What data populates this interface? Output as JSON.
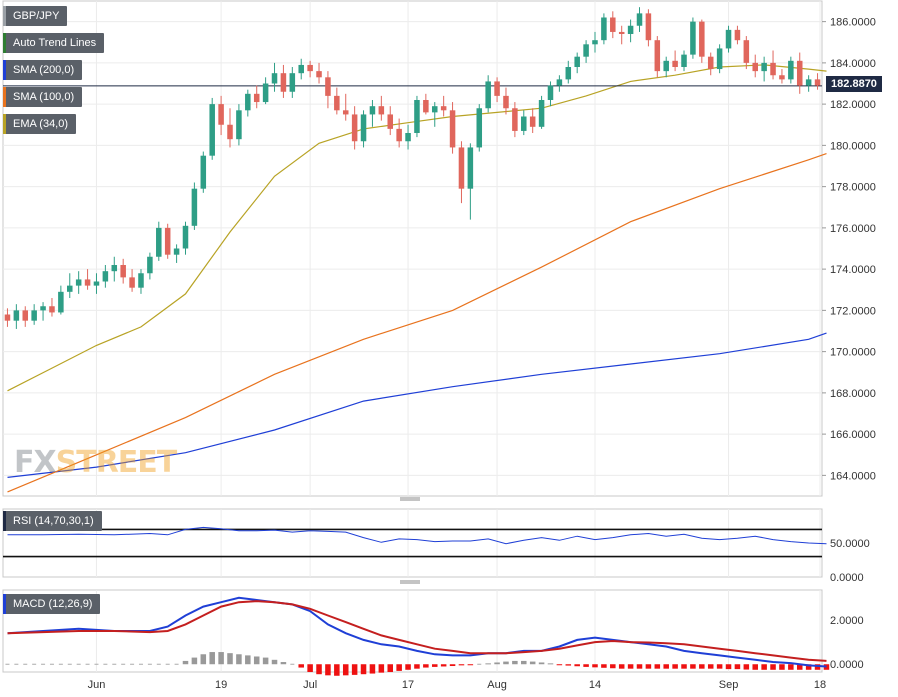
{
  "brand": {
    "fx": "FX",
    "street": "STREET"
  },
  "legend": [
    {
      "label": "GBP/JPY",
      "color": "#9aa0a6"
    },
    {
      "label": "Auto Trend Lines",
      "color": "#2e7d32"
    },
    {
      "label": "SMA (200,0)",
      "color": "#1f3fd6"
    },
    {
      "label": "SMA (100,0)",
      "color": "#e8731e"
    },
    {
      "label": "EMA (34,0)",
      "color": "#b8a325"
    }
  ],
  "rsi_label": "RSI (14,70,30,1)",
  "macd_label": "MACD (12,26,9)",
  "last_price": "182.8870",
  "chart_data": [
    {
      "type": "candlestick",
      "title": "GBP/JPY",
      "ylim": [
        163,
        187
      ],
      "yticks": [
        "164.0000",
        "166.0000",
        "168.0000",
        "170.0000",
        "172.0000",
        "174.0000",
        "176.0000",
        "178.0000",
        "180.0000",
        "182.0000",
        "184.0000",
        "186.0000"
      ],
      "xticks": [
        "Jun",
        "19",
        "Jul",
        "17",
        "Aug",
        "14",
        "Sep",
        "18"
      ],
      "candles": [
        [
          171.8,
          172.1,
          171.2,
          171.5
        ],
        [
          171.5,
          172.3,
          171.1,
          172.0
        ],
        [
          172.0,
          172.2,
          171.2,
          171.5
        ],
        [
          171.5,
          172.3,
          171.3,
          172.0
        ],
        [
          172.0,
          172.4,
          171.5,
          172.2
        ],
        [
          172.2,
          172.6,
          171.7,
          171.9
        ],
        [
          171.9,
          173.2,
          171.8,
          172.9
        ],
        [
          172.9,
          173.8,
          172.6,
          173.2
        ],
        [
          173.2,
          173.9,
          172.8,
          173.5
        ],
        [
          173.5,
          174.0,
          173.0,
          173.2
        ],
        [
          173.2,
          173.8,
          172.8,
          173.4
        ],
        [
          173.4,
          174.2,
          173.1,
          173.9
        ],
        [
          173.9,
          174.6,
          173.4,
          174.2
        ],
        [
          174.2,
          174.5,
          173.3,
          173.6
        ],
        [
          173.6,
          174.0,
          172.9,
          173.1
        ],
        [
          173.1,
          174.0,
          172.8,
          173.8
        ],
        [
          173.8,
          174.8,
          173.5,
          174.6
        ],
        [
          174.6,
          176.3,
          174.4,
          176.0
        ],
        [
          176.0,
          176.2,
          174.5,
          174.7
        ],
        [
          174.7,
          175.2,
          174.3,
          175.0
        ],
        [
          175.0,
          176.3,
          174.7,
          176.1
        ],
        [
          176.1,
          178.2,
          175.9,
          177.9
        ],
        [
          177.9,
          179.7,
          177.7,
          179.5
        ],
        [
          179.5,
          182.3,
          179.3,
          182.0
        ],
        [
          182.0,
          182.4,
          180.5,
          181.0
        ],
        [
          181.0,
          181.8,
          179.9,
          180.3
        ],
        [
          180.3,
          182.0,
          180.0,
          181.7
        ],
        [
          181.7,
          182.7,
          181.4,
          182.5
        ],
        [
          182.5,
          182.9,
          181.8,
          182.1
        ],
        [
          182.1,
          183.3,
          182.0,
          183.0
        ],
        [
          183.0,
          184.0,
          182.6,
          183.5
        ],
        [
          183.5,
          183.9,
          182.3,
          182.6
        ],
        [
          182.6,
          183.8,
          182.3,
          183.5
        ],
        [
          183.5,
          184.2,
          183.2,
          183.9
        ],
        [
          183.9,
          184.1,
          183.3,
          183.6
        ],
        [
          183.6,
          184.0,
          183.0,
          183.3
        ],
        [
          183.3,
          183.6,
          181.8,
          182.4
        ],
        [
          182.4,
          182.8,
          181.5,
          181.7
        ],
        [
          181.7,
          182.5,
          181.2,
          181.5
        ],
        [
          181.5,
          181.9,
          179.8,
          180.2
        ],
        [
          180.2,
          181.7,
          179.9,
          181.5
        ],
        [
          181.5,
          182.2,
          180.9,
          181.9
        ],
        [
          181.9,
          182.4,
          181.2,
          181.5
        ],
        [
          181.5,
          181.9,
          180.5,
          180.8
        ],
        [
          180.8,
          181.3,
          179.9,
          180.2
        ],
        [
          180.2,
          181.0,
          179.8,
          180.6
        ],
        [
          180.6,
          182.4,
          180.4,
          182.2
        ],
        [
          182.2,
          182.5,
          181.5,
          181.6
        ],
        [
          181.6,
          182.1,
          180.9,
          181.9
        ],
        [
          181.9,
          182.4,
          181.4,
          181.7
        ],
        [
          181.7,
          182.1,
          179.6,
          179.9
        ],
        [
          179.9,
          180.2,
          177.2,
          177.9
        ],
        [
          177.9,
          180.1,
          176.4,
          179.9
        ],
        [
          179.9,
          182.0,
          179.7,
          181.8
        ],
        [
          181.8,
          183.4,
          181.6,
          183.1
        ],
        [
          183.1,
          183.3,
          182.1,
          182.4
        ],
        [
          182.4,
          182.8,
          181.5,
          181.8
        ],
        [
          181.8,
          182.1,
          180.4,
          180.7
        ],
        [
          180.7,
          181.7,
          180.5,
          181.4
        ],
        [
          181.4,
          181.8,
          180.6,
          180.9
        ],
        [
          180.9,
          182.4,
          180.8,
          182.2
        ],
        [
          182.2,
          183.1,
          181.9,
          182.9
        ],
        [
          182.9,
          183.4,
          182.6,
          183.2
        ],
        [
          183.2,
          184.1,
          183.0,
          183.8
        ],
        [
          183.8,
          184.5,
          183.5,
          184.3
        ],
        [
          184.3,
          185.1,
          184.0,
          184.9
        ],
        [
          184.9,
          185.5,
          184.5,
          185.1
        ],
        [
          185.1,
          186.4,
          184.9,
          186.2
        ],
        [
          186.2,
          186.5,
          185.2,
          185.5
        ],
        [
          185.5,
          185.8,
          184.9,
          185.4
        ],
        [
          185.4,
          186.1,
          185.0,
          185.8
        ],
        [
          185.8,
          186.7,
          185.5,
          186.4
        ],
        [
          186.4,
          186.6,
          184.8,
          185.1
        ],
        [
          185.1,
          185.3,
          183.3,
          183.6
        ],
        [
          183.6,
          184.3,
          183.3,
          184.1
        ],
        [
          184.1,
          184.6,
          183.6,
          183.8
        ],
        [
          183.8,
          184.6,
          183.6,
          184.4
        ],
        [
          184.4,
          186.2,
          184.2,
          186.0
        ],
        [
          186.0,
          186.1,
          184.0,
          184.3
        ],
        [
          184.3,
          184.5,
          183.4,
          183.7
        ],
        [
          183.7,
          184.9,
          183.5,
          184.7
        ],
        [
          184.7,
          185.8,
          184.5,
          185.6
        ],
        [
          185.6,
          185.8,
          184.9,
          185.1
        ],
        [
          185.1,
          185.3,
          183.7,
          184.0
        ],
        [
          184.0,
          184.4,
          183.3,
          183.6
        ],
        [
          183.6,
          184.3,
          183.1,
          184.0
        ],
        [
          184.0,
          184.6,
          183.2,
          183.4
        ],
        [
          183.4,
          183.7,
          183.0,
          183.2
        ],
        [
          183.2,
          184.3,
          183.0,
          184.1
        ],
        [
          184.1,
          184.5,
          182.5,
          182.9
        ],
        [
          182.9,
          183.4,
          182.6,
          183.2
        ],
        [
          183.2,
          183.5,
          182.7,
          182.9
        ]
      ],
      "series": [
        {
          "name": "SMA (200,0)",
          "x": [
            0,
            10,
            20,
            30,
            40,
            50,
            60,
            70,
            80,
            90,
            92
          ],
          "values": [
            163.9,
            164.4,
            165.1,
            166.2,
            167.6,
            168.3,
            168.9,
            169.4,
            169.9,
            170.6,
            170.9
          ]
        },
        {
          "name": "SMA (100,0)",
          "x": [
            0,
            10,
            20,
            30,
            40,
            50,
            60,
            70,
            80,
            90,
            92
          ],
          "values": [
            163.2,
            165.0,
            166.8,
            168.9,
            170.6,
            172.0,
            174.1,
            176.3,
            177.9,
            179.3,
            179.6
          ]
        },
        {
          "name": "EMA (34,0)",
          "x": [
            0,
            5,
            10,
            15,
            20,
            25,
            30,
            35,
            40,
            45,
            50,
            55,
            60,
            65,
            70,
            75,
            80,
            85,
            90,
            92
          ],
          "values": [
            168.1,
            169.2,
            170.3,
            171.2,
            172.8,
            175.8,
            178.5,
            180.1,
            180.8,
            181.1,
            181.4,
            181.6,
            181.8,
            182.4,
            183.1,
            183.4,
            183.8,
            183.9,
            183.7,
            183.6
          ]
        }
      ],
      "trend_line": {
        "value": 182.887
      }
    },
    {
      "type": "line",
      "title": "RSI (14,70,30,1)",
      "ylim": [
        0,
        100
      ],
      "yticks": [
        "0.0000",
        "50.0000"
      ],
      "levels": [
        70,
        30
      ],
      "x": [
        0,
        4,
        8,
        12,
        16,
        18,
        20,
        22,
        24,
        26,
        28,
        30,
        32,
        34,
        36,
        38,
        40,
        42,
        44,
        46,
        48,
        50,
        52,
        54,
        56,
        58,
        60,
        62,
        64,
        66,
        68,
        70,
        72,
        74,
        76,
        78,
        80,
        82,
        84,
        86,
        88,
        90,
        92
      ],
      "values": [
        62,
        62,
        63,
        62,
        64,
        62,
        70,
        73,
        71,
        68,
        68,
        69,
        66,
        68,
        67,
        66,
        58,
        51,
        56,
        55,
        52,
        53,
        53,
        56,
        49,
        54,
        58,
        54,
        60,
        55,
        58,
        62,
        64,
        60,
        63,
        57,
        55,
        57,
        60,
        55,
        52,
        50,
        49
      ]
    },
    {
      "type": "line",
      "title": "MACD (12,26,9)",
      "ylim": [
        -0.35,
        3.35
      ],
      "yticks": [
        "0.0000",
        "2.0000"
      ],
      "x": [
        0,
        4,
        8,
        12,
        16,
        18,
        20,
        22,
        24,
        26,
        28,
        30,
        32,
        34,
        36,
        38,
        40,
        42,
        44,
        46,
        48,
        50,
        52,
        54,
        56,
        58,
        60,
        62,
        64,
        66,
        68,
        70,
        72,
        74,
        76,
        78,
        80,
        82,
        84,
        86,
        88,
        90,
        92
      ],
      "series": [
        {
          "name": "MACD",
          "values": [
            1.4,
            1.5,
            1.6,
            1.5,
            1.5,
            1.7,
            2.2,
            2.6,
            2.8,
            3.0,
            2.9,
            2.8,
            2.7,
            2.4,
            1.8,
            1.4,
            1.1,
            0.9,
            0.8,
            0.6,
            0.45,
            0.4,
            0.4,
            0.5,
            0.5,
            0.6,
            0.6,
            0.8,
            1.1,
            1.2,
            1.1,
            1.0,
            0.9,
            0.8,
            0.6,
            0.5,
            0.4,
            0.3,
            0.2,
            0.1,
            0.05,
            -0.05,
            -0.1
          ]
        },
        {
          "name": "Signal",
          "values": [
            1.4,
            1.45,
            1.5,
            1.5,
            1.45,
            1.5,
            1.8,
            2.2,
            2.6,
            2.8,
            2.85,
            2.8,
            2.7,
            2.5,
            2.2,
            1.9,
            1.6,
            1.3,
            1.1,
            0.9,
            0.7,
            0.6,
            0.5,
            0.5,
            0.5,
            0.55,
            0.6,
            0.7,
            0.85,
            1.0,
            1.05,
            1.0,
            0.98,
            0.95,
            0.9,
            0.8,
            0.7,
            0.6,
            0.5,
            0.4,
            0.3,
            0.2,
            0.15
          ]
        }
      ],
      "histogram": [
        0,
        0,
        0,
        0,
        0,
        0,
        0,
        0,
        0,
        0,
        0,
        0,
        0,
        0,
        0,
        0,
        0,
        0,
        0,
        0,
        0.15,
        0.3,
        0.45,
        0.55,
        0.55,
        0.5,
        0.45,
        0.4,
        0.35,
        0.3,
        0.2,
        0.1,
        0,
        -0.15,
        -0.35,
        -0.45,
        -0.5,
        -0.52,
        -0.5,
        -0.48,
        -0.45,
        -0.42,
        -0.38,
        -0.35,
        -0.3,
        -0.25,
        -0.2,
        -0.15,
        -0.12,
        -0.1,
        -0.08,
        -0.05,
        -0.03,
        0,
        0.04,
        0.08,
        0.12,
        0.15,
        0.15,
        0.12,
        0.08,
        0.04,
        -0.02,
        -0.06,
        -0.09,
        -0.12,
        -0.14,
        -0.16,
        -0.18,
        -0.2,
        -0.2,
        -0.2,
        -0.2,
        -0.2,
        -0.2,
        -0.2,
        -0.2,
        -0.2,
        -0.2,
        -0.2,
        -0.2,
        -0.22,
        -0.22,
        -0.24,
        -0.25,
        -0.25,
        -0.25,
        -0.25,
        -0.25,
        -0.25,
        -0.25,
        -0.25,
        -0.25
      ]
    }
  ],
  "colors": {
    "up": "#2e9e86",
    "down": "#e0665c",
    "sma200": "#1f3fd6",
    "sma100": "#e8731e",
    "ema34": "#b8a325",
    "trend": "#1f2a44",
    "macd": "#1f3fd6",
    "signal": "#c41f1f",
    "hist_pos": "#999999",
    "hist_neg": "#ee1111"
  }
}
